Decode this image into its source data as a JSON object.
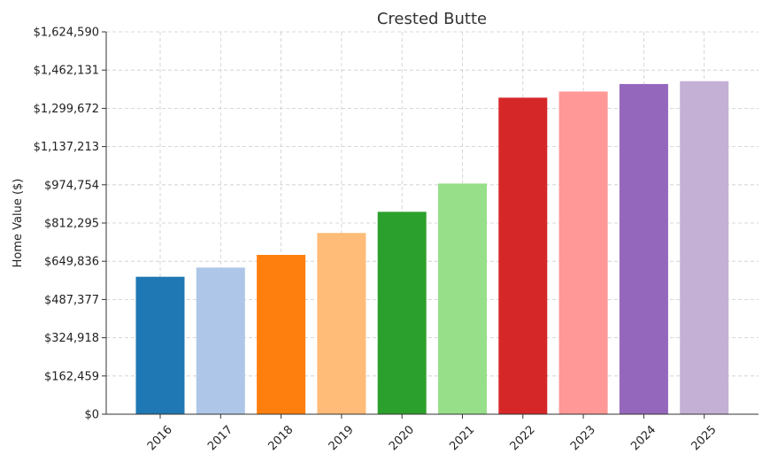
{
  "chart_data": {
    "type": "bar",
    "title": "Crested Butte",
    "xlabel": "",
    "ylabel": "Home Value ($)",
    "categories": [
      "2016",
      "2017",
      "2018",
      "2019",
      "2020",
      "2021",
      "2022",
      "2023",
      "2024",
      "2025"
    ],
    "values": [
      584000,
      623000,
      677000,
      770000,
      860000,
      980000,
      1345000,
      1371000,
      1403000,
      1415000
    ],
    "colors": [
      "#1f77b4",
      "#aec7e8",
      "#ff7f0e",
      "#ffbb78",
      "#2ca02c",
      "#98df8a",
      "#d62728",
      "#ff9896",
      "#9467bd",
      "#c5b0d5"
    ],
    "ylim": [
      0,
      1624590
    ],
    "yticks": [
      0,
      162459,
      324918,
      487377,
      649836,
      812295,
      974754,
      1137213,
      1299672,
      1462131,
      1624590
    ],
    "ytick_labels": [
      "$0",
      "$162,459",
      "$324,918",
      "$487,377",
      "$649,836",
      "$812,295",
      "$974,754",
      "$1,137,213",
      "$1,299,672",
      "$1,462,131",
      "$1,624,590"
    ],
    "grid": true,
    "legend": "none"
  }
}
